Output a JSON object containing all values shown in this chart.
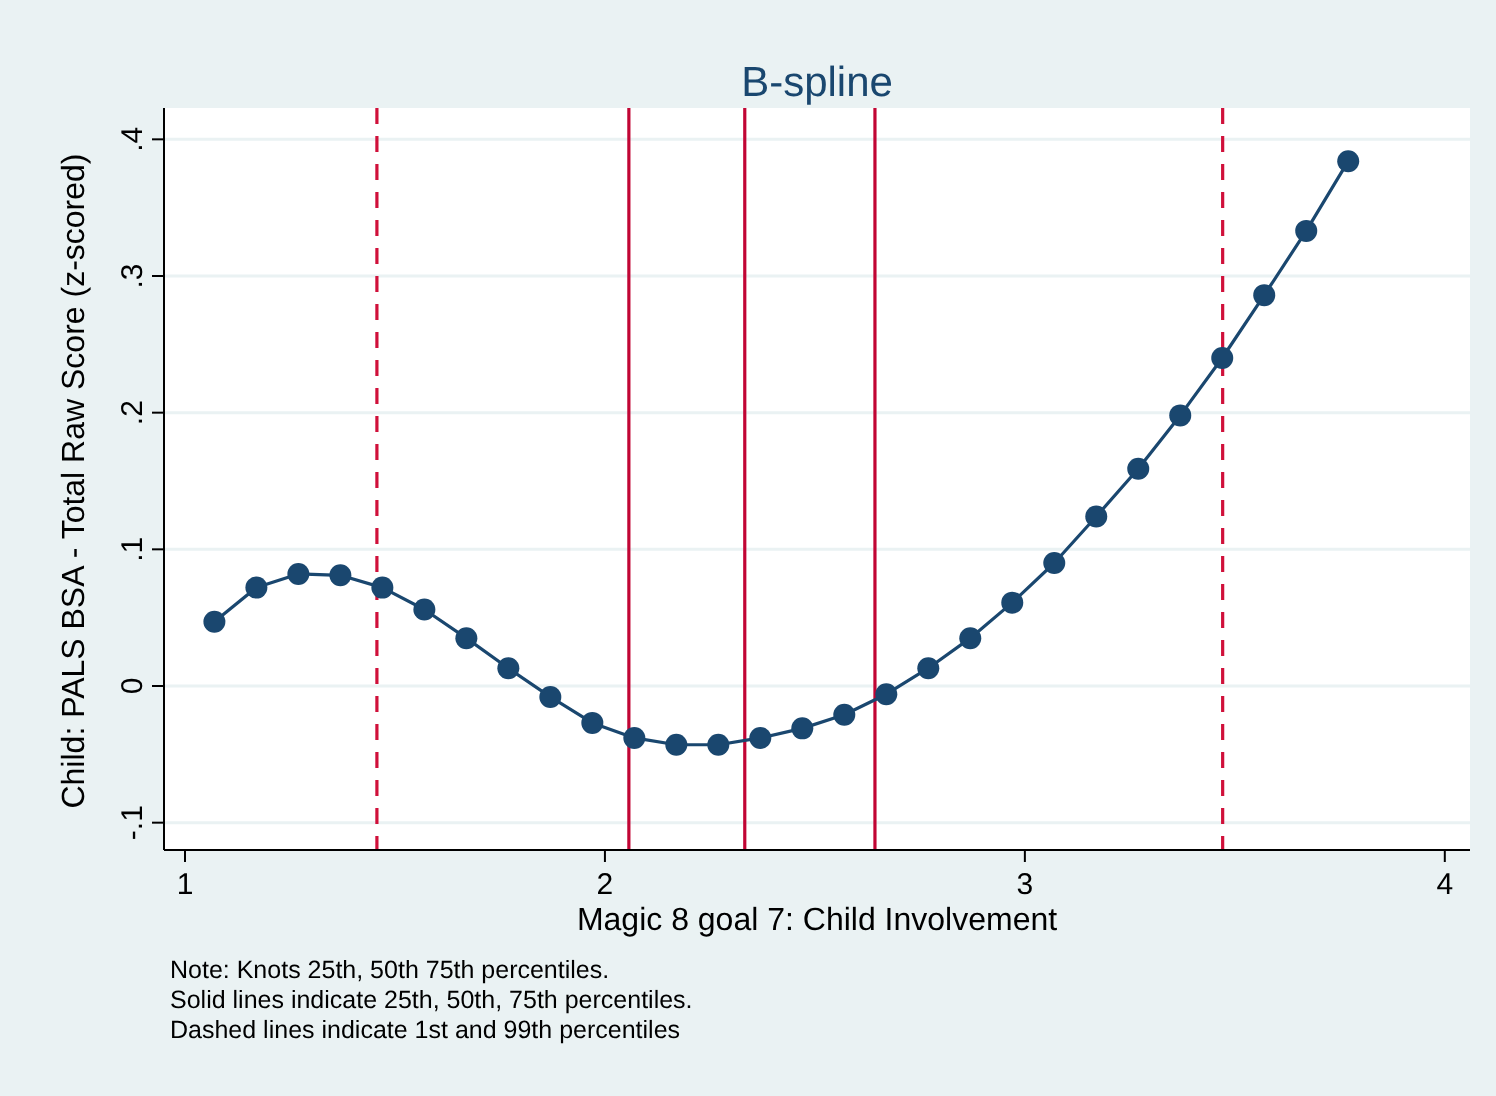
{
  "chart_data": {
    "type": "line",
    "title": "B-spline",
    "xlabel": "Magic 8 goal 7: Child Involvement",
    "ylabel": "Child: PALS BSA - Total Raw Score (z-scored)",
    "x": [
      1.07,
      1.17,
      1.27,
      1.37,
      1.47,
      1.57,
      1.67,
      1.77,
      1.87,
      1.97,
      2.07,
      2.17,
      2.27,
      2.37,
      2.47,
      2.57,
      2.67,
      2.77,
      2.87,
      2.97,
      3.07,
      3.17,
      3.27,
      3.37,
      3.47,
      3.57,
      3.67,
      3.77
    ],
    "series": [
      {
        "color": "#1a476f",
        "values": [
          0.047,
          0.072,
          0.082,
          0.081,
          0.072,
          0.056,
          0.035,
          0.013,
          -0.008,
          -0.027,
          -0.038,
          -0.043,
          -0.043,
          -0.038,
          -0.031,
          -0.021,
          -0.006,
          0.013,
          0.035,
          0.061,
          0.09,
          0.124,
          0.159,
          0.198,
          0.24,
          0.286,
          0.333,
          0.384
        ]
      }
    ],
    "marker": "circle",
    "grid": "y",
    "xlim": [
      0.95,
      4.06
    ],
    "xticks": [
      1,
      2,
      3,
      4
    ],
    "ylim": [
      -0.12,
      0.42
    ],
    "yticks": [
      {
        "value": -0.1,
        "label": "-.1"
      },
      {
        "value": 0,
        "label": "0"
      },
      {
        "value": 0.1,
        "label": ".1"
      },
      {
        "value": 0.2,
        "label": ".2"
      },
      {
        "value": 0.3,
        "label": ".3"
      },
      {
        "value": 0.4,
        "label": ".4"
      }
    ],
    "ref_lines": [
      {
        "axis": "x",
        "value": 1.457,
        "color": "#d0103a",
        "line_style": "dashed"
      },
      {
        "axis": "x",
        "value": 2.057,
        "color": "#c10534",
        "line_style": "solid"
      },
      {
        "axis": "x",
        "value": 2.333,
        "color": "#c10534",
        "line_style": "solid"
      },
      {
        "axis": "x",
        "value": 2.643,
        "color": "#c10534",
        "line_style": "solid"
      },
      {
        "axis": "x",
        "value": 3.471,
        "color": "#d0103a",
        "line_style": "dashed"
      }
    ],
    "annotations": [
      "Note: Knots 25th, 50th 75th percentiles.",
      "Solid lines indicate 25th, 50th, 75th percentiles.",
      "Dashed lines indicate 1st and 99th percentiles"
    ]
  }
}
